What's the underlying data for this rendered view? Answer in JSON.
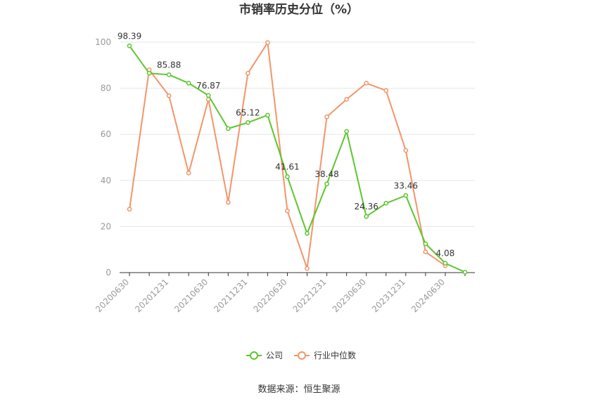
{
  "chart_data": {
    "type": "line",
    "title": "市销率历史分位（%）",
    "ylim": [
      0,
      100
    ],
    "yticks": [
      0,
      20,
      40,
      60,
      80,
      100
    ],
    "x": [
      "20200630",
      "20200930",
      "20201231",
      "20210331",
      "20210630",
      "20210930",
      "20211231",
      "20220331",
      "20220630",
      "20220930",
      "20221231",
      "20230331",
      "20230630",
      "20230930",
      "20231231",
      "20240331",
      "20240630",
      "20240930"
    ],
    "xtick_labels": [
      "20200630",
      "20201231",
      "20210630",
      "20211231",
      "20220630",
      "20221231",
      "20230630",
      "20231231",
      "20240630"
    ],
    "series": [
      {
        "name": "公司",
        "color": "#5cc72e",
        "values": [
          98.39,
          86.5,
          85.88,
          82.2,
          76.87,
          62.5,
          65.12,
          68.3,
          41.61,
          17.0,
          38.48,
          61.3,
          24.36,
          30.1,
          33.46,
          12.5,
          4.08,
          0.2
        ],
        "labels": [
          "98.39",
          null,
          "85.88",
          null,
          "76.87",
          null,
          "65.12",
          null,
          "41.61",
          null,
          "38.48",
          null,
          "24.36",
          null,
          "33.46",
          null,
          "4.08",
          null
        ]
      },
      {
        "name": "行业中位数",
        "color": "#f2956a",
        "values": [
          27.5,
          88.0,
          76.8,
          43.2,
          75.2,
          30.5,
          86.5,
          99.8,
          26.8,
          1.8,
          67.6,
          75.2,
          82.2,
          79.0,
          53.0,
          9.0,
          3.0,
          null
        ],
        "labels": []
      }
    ],
    "grid": true,
    "legend": "bottom-center"
  },
  "footer": {
    "source": "数据来源：恒生聚源"
  }
}
